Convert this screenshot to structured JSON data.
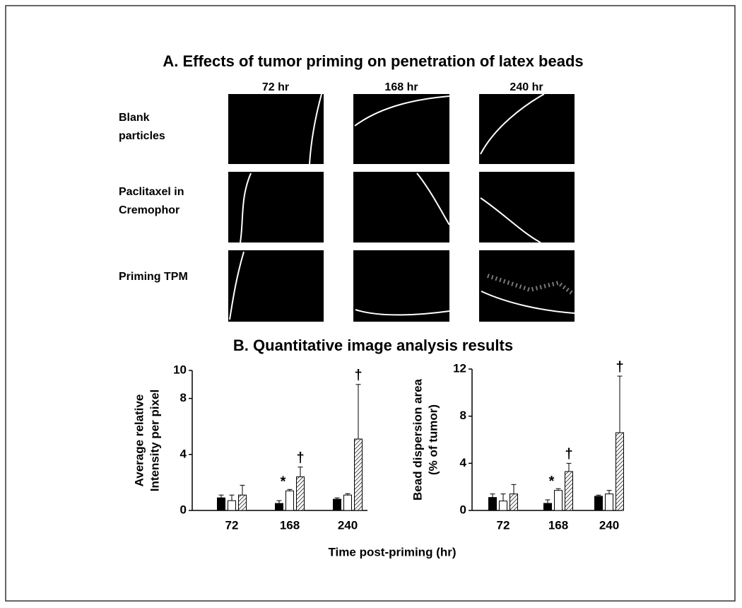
{
  "panel_a": {
    "title": "A. Effects of tumor priming on penetration of latex beads",
    "columns": [
      "72 hr",
      "168 hr",
      "240 hr"
    ],
    "rows": [
      [
        "Blank",
        "particles"
      ],
      [
        "Paclitaxel in",
        "Cremophor"
      ],
      [
        "Priming TPM"
      ]
    ]
  },
  "panel_b": {
    "title": "B. Quantitative image analysis results",
    "x_label": "Time post-priming (hr)"
  },
  "chart_data": [
    {
      "type": "bar",
      "y_label": [
        "Average relative",
        "Intensity per pixel"
      ],
      "categories": [
        "72",
        "168",
        "240"
      ],
      "ylim": [
        0,
        10
      ],
      "yticks": [
        0,
        4,
        8,
        10
      ],
      "series": [
        {
          "color": "#000000",
          "fill": "solid",
          "values": [
            0.9,
            0.5,
            0.8
          ],
          "errors": [
            0.2,
            0.2,
            0.1
          ],
          "markers": [
            null,
            null,
            null
          ]
        },
        {
          "color": "#ffffff",
          "fill": "solid",
          "values": [
            0.7,
            1.4,
            1.1
          ],
          "errors": [
            0.4,
            0.1,
            0.1
          ],
          "markers": [
            null,
            "*",
            null
          ]
        },
        {
          "color": "#ffffff",
          "fill": "hatch",
          "values": [
            1.1,
            2.4,
            5.1
          ],
          "errors": [
            0.7,
            0.7,
            3.9
          ],
          "markers": [
            null,
            "†",
            "†"
          ]
        }
      ]
    },
    {
      "type": "bar",
      "y_label": [
        "Bead dispersion area",
        "(% of tumor)"
      ],
      "categories": [
        "72",
        "168",
        "240"
      ],
      "ylim": [
        0,
        12
      ],
      "yticks": [
        0,
        4,
        8,
        12
      ],
      "series": [
        {
          "color": "#000000",
          "fill": "solid",
          "values": [
            1.1,
            0.6,
            1.2
          ],
          "errors": [
            0.3,
            0.3,
            0.1
          ],
          "markers": [
            null,
            null,
            null
          ]
        },
        {
          "color": "#ffffff",
          "fill": "solid",
          "values": [
            0.8,
            1.7,
            1.4
          ],
          "errors": [
            0.6,
            0.15,
            0.3
          ],
          "markers": [
            null,
            "*",
            null
          ]
        },
        {
          "color": "#ffffff",
          "fill": "hatch",
          "values": [
            1.4,
            3.3,
            6.6
          ],
          "errors": [
            0.8,
            0.7,
            4.8
          ],
          "markers": [
            null,
            "†",
            "†"
          ]
        }
      ]
    }
  ]
}
